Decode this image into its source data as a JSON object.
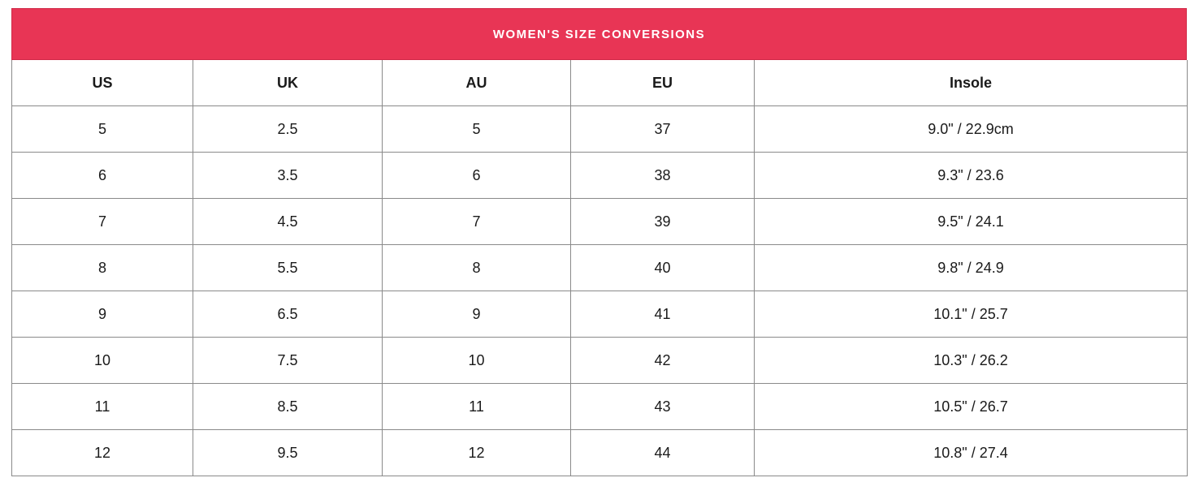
{
  "title": "WOMEN'S SIZE CONVERSIONS",
  "colors": {
    "title_bg": "#e83555",
    "title_text": "#ffffff",
    "border": "#8a8a8a"
  },
  "headers": [
    "US",
    "UK",
    "AU",
    "EU",
    "Insole"
  ],
  "rows": [
    [
      "5",
      "2.5",
      "5",
      "37",
      "9.0\" / 22.9cm"
    ],
    [
      "6",
      "3.5",
      "6",
      "38",
      "9.3\" / 23.6"
    ],
    [
      "7",
      "4.5",
      "7",
      "39",
      "9.5\" / 24.1"
    ],
    [
      "8",
      "5.5",
      "8",
      "40",
      "9.8\" / 24.9"
    ],
    [
      "9",
      "6.5",
      "9",
      "41",
      "10.1\" / 25.7"
    ],
    [
      "10",
      "7.5",
      "10",
      "42",
      "10.3\" / 26.2"
    ],
    [
      "11",
      "8.5",
      "11",
      "43",
      "10.5\" / 26.7"
    ],
    [
      "12",
      "9.5",
      "12",
      "44",
      "10.8\" / 27.4"
    ]
  ]
}
